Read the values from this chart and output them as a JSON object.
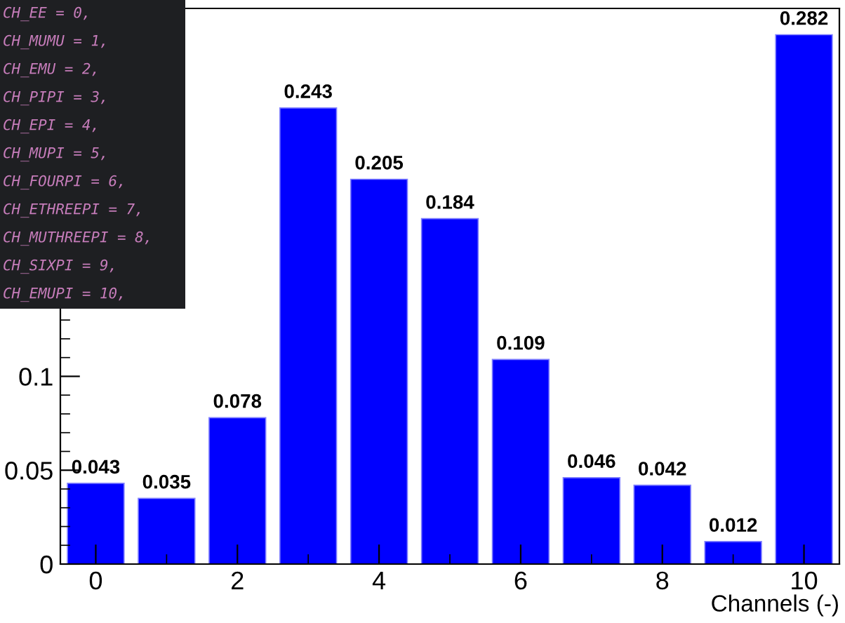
{
  "chart_data": {
    "type": "bar",
    "x": [
      0,
      1,
      2,
      3,
      4,
      5,
      6,
      7,
      8,
      9,
      10
    ],
    "values": [
      0.043,
      0.035,
      0.078,
      0.243,
      0.205,
      0.184,
      0.109,
      0.046,
      0.042,
      0.012,
      0.282
    ],
    "color": "#0000ff",
    "data_labels": true,
    "xlabel": "Channels (-)",
    "xlim": [
      -0.5,
      10.5
    ],
    "xticks": [
      0,
      2,
      4,
      6,
      8,
      10
    ],
    "ylim": [
      0,
      0.296
    ],
    "yticks": [
      0,
      0.05,
      0.1
    ],
    "grid": false,
    "annotations": [
      "CH_EE = 0,",
      "CH_MUMU = 1,",
      "CH_EMU = 2,",
      "CH_PIPI = 3,",
      "CH_EPI = 4,",
      "CH_MUPI = 5,",
      "CH_FOURPI = 6,",
      "CH_ETHREEPI = 7,",
      "CH_MUTHREEPI = 8,",
      "CH_SIXPI = 9,",
      "CH_EMUPI = 10,"
    ]
  }
}
